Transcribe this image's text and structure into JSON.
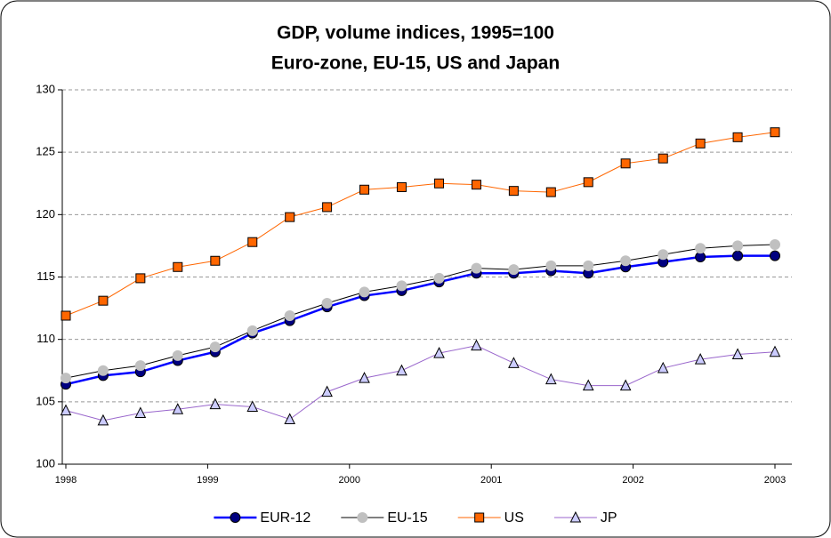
{
  "chart_data": {
    "type": "line",
    "title": "GDP, volume indices, 1995=100",
    "subtitle": "Euro-zone, EU-15, US and Japan",
    "x": [
      1998,
      1998.263,
      1998.526,
      1998.789,
      1999.053,
      1999.316,
      1999.579,
      1999.842,
      2000.105,
      2000.368,
      2000.632,
      2000.895,
      2001.158,
      2001.421,
      2001.684,
      2001.947,
      2002.211,
      2002.474,
      2002.737,
      2003
    ],
    "xlim": [
      1998,
      2003
    ],
    "xticks": [
      1998,
      1999,
      2000,
      2001,
      2002,
      2003
    ],
    "ylim": [
      100,
      130
    ],
    "yticks": [
      100,
      105,
      110,
      115,
      120,
      125,
      130
    ],
    "grid": true,
    "legend": "bottom",
    "series": [
      {
        "name": "EUR-12",
        "color": "#0000ff",
        "marker": "circle",
        "marker_color": "#000080",
        "values": [
          106.4,
          107.1,
          107.4,
          108.3,
          109.0,
          110.5,
          111.5,
          112.6,
          113.5,
          113.9,
          114.6,
          115.3,
          115.3,
          115.5,
          115.3,
          115.8,
          116.2,
          116.6,
          116.7,
          116.7
        ]
      },
      {
        "name": "EU-15",
        "color": "#000000",
        "marker": "circle",
        "marker_color": "#c0c0c0",
        "values": [
          106.9,
          107.5,
          107.9,
          108.7,
          109.4,
          110.7,
          111.9,
          112.9,
          113.8,
          114.3,
          114.9,
          115.7,
          115.6,
          115.9,
          115.9,
          116.3,
          116.8,
          117.3,
          117.5,
          117.6
        ]
      },
      {
        "name": "US",
        "color": "#ff6600",
        "marker": "square",
        "marker_color": "#ff6600",
        "values": [
          111.9,
          113.1,
          114.9,
          115.8,
          116.3,
          117.8,
          119.8,
          120.6,
          122.0,
          122.2,
          122.5,
          122.4,
          121.9,
          121.8,
          122.6,
          124.1,
          124.5,
          125.7,
          126.2,
          126.6
        ]
      },
      {
        "name": "JP",
        "color": "#9966cc",
        "marker": "triangle",
        "marker_color": "#ccccff",
        "values": [
          104.3,
          103.5,
          104.1,
          104.4,
          104.8,
          104.6,
          103.6,
          105.8,
          106.9,
          107.5,
          108.9,
          109.5,
          108.1,
          106.8,
          106.3,
          106.3,
          107.7,
          108.4,
          108.8,
          109.0
        ]
      }
    ]
  }
}
